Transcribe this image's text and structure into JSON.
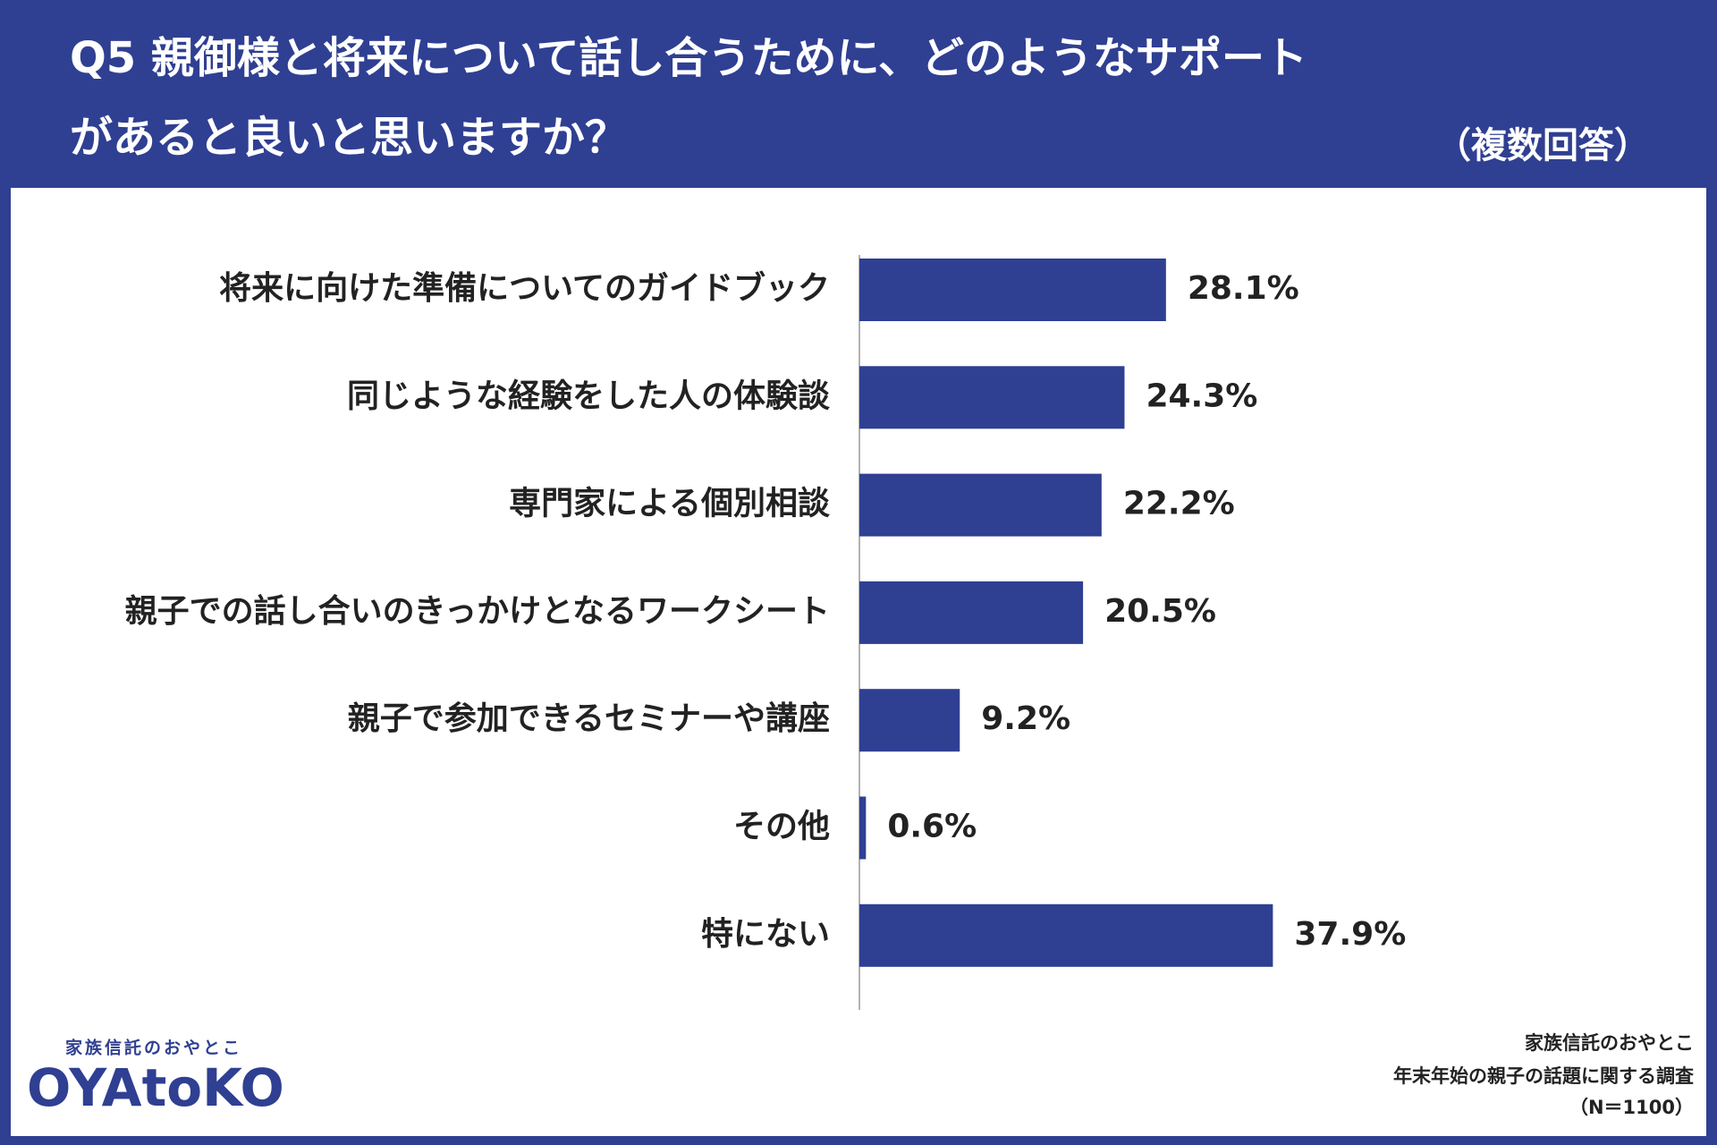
{
  "chart_data": {
    "type": "hbar",
    "title": [
      "Q5 親御様と将来について話し合うために、どのようなサポート",
      "があると良いと思いますか？"
    ],
    "subtitle": "（複数回答）",
    "categories": [
      "将来に向けた準備についてのガイドブック",
      "同じような経験をした人の体験談",
      "専門家による個別相談",
      "親子での話し合いのきっかけとなるワークシート",
      "親子で参加できるセミナーや講座",
      "その他",
      "特にない"
    ],
    "values": [
      28.1,
      24.3,
      22.2,
      20.5,
      9.2,
      0.6,
      37.9
    ],
    "value_labels": [
      "28.1%",
      "24.3%",
      "22.2%",
      "20.5%",
      "9.2%",
      "0.6%",
      "37.9%"
    ],
    "color": "#2f3f92",
    "xlim": [
      0,
      40
    ]
  },
  "logo": {
    "tagline": "家族信託のおやとこ",
    "name": "OYAtoKO"
  },
  "source": [
    "家族信託のおやとこ",
    "年末年始の親子の話題に関する調査",
    "（N＝1100）"
  ]
}
